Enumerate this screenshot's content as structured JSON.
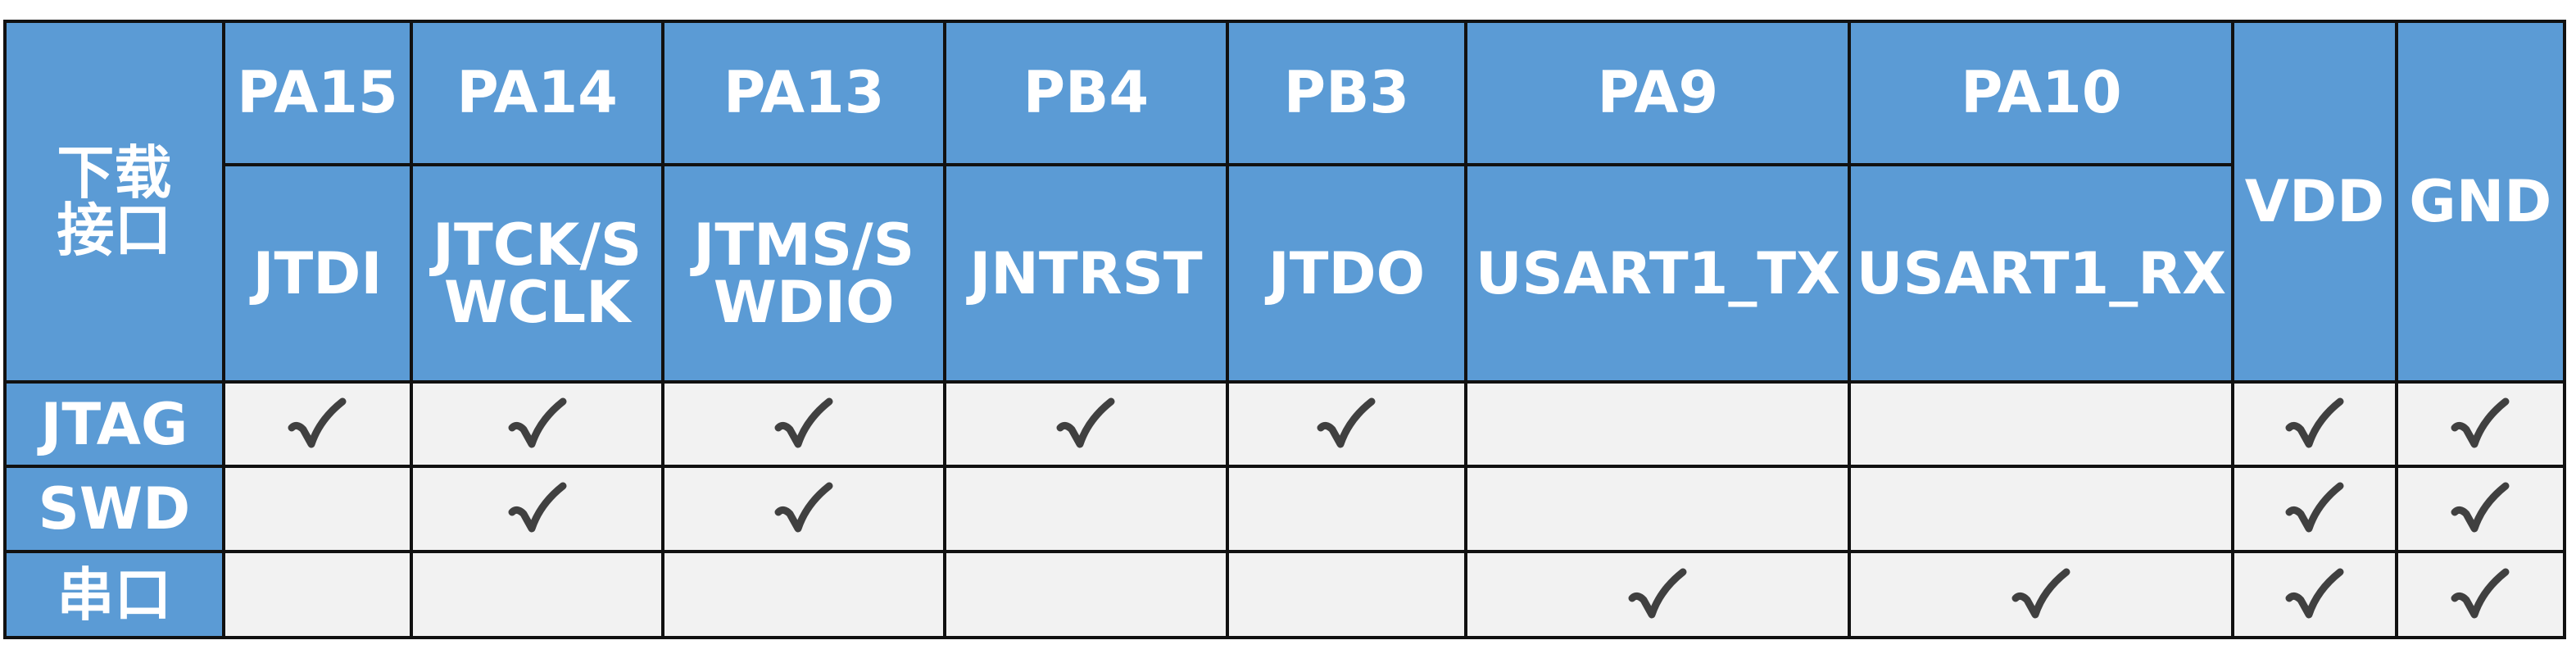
{
  "table": {
    "corner_label": "下载\n接口",
    "pins": [
      {
        "pin": "PA15",
        "function": "JTDI"
      },
      {
        "pin": "PA14",
        "function": "JTCK/SWCLK"
      },
      {
        "pin": "PA13",
        "function": "JTMS/SWDIO"
      },
      {
        "pin": "PB4",
        "function": "JNTRST"
      },
      {
        "pin": "PB3",
        "function": "JTDO"
      },
      {
        "pin": "PA9",
        "function": "USART1_TX"
      },
      {
        "pin": "PA10",
        "function": "USART1_RX"
      }
    ],
    "power_columns": [
      "VDD",
      "GND"
    ],
    "rows": [
      {
        "label": "JTAG",
        "checks": [
          true,
          true,
          true,
          true,
          true,
          false,
          false,
          true,
          true
        ]
      },
      {
        "label": "SWD",
        "checks": [
          false,
          true,
          true,
          false,
          false,
          false,
          false,
          true,
          true
        ]
      },
      {
        "label": "串口",
        "checks": [
          false,
          false,
          false,
          false,
          false,
          true,
          true,
          true,
          true
        ]
      }
    ],
    "check_symbol": "✓",
    "colors": {
      "header_bg": "#5b9bd5",
      "header_text": "#ffffff",
      "cell_bg": "#f2f2f2",
      "border": "#111111",
      "check": "#404040"
    }
  }
}
